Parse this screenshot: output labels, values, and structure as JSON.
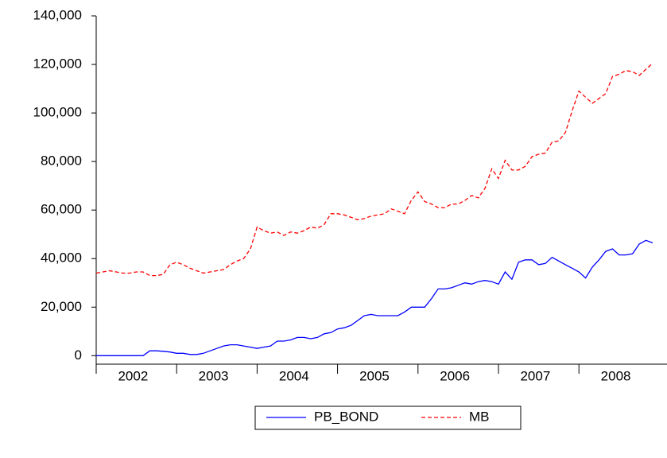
{
  "chart_data": {
    "type": "line",
    "categories": [
      null,
      null,
      null,
      null,
      null,
      null,
      "2002",
      null,
      null,
      null,
      null,
      null,
      null,
      null,
      null,
      null,
      null,
      null,
      "2003",
      null,
      null,
      null,
      null,
      null,
      null,
      null,
      null,
      null,
      null,
      null,
      "2004",
      null,
      null,
      null,
      null,
      null,
      null,
      null,
      null,
      null,
      null,
      null,
      "2005",
      null,
      null,
      null,
      null,
      null,
      null,
      null,
      null,
      null,
      null,
      null,
      "2006",
      null,
      null,
      null,
      null,
      null,
      null,
      null,
      null,
      null,
      null,
      null,
      "2007",
      null,
      null,
      null,
      null,
      null,
      null,
      null,
      null,
      null,
      null,
      null,
      "2008",
      null,
      null,
      null,
      null,
      null
    ],
    "series": [
      {
        "name": "PB_BOND",
        "color": "#0000ff",
        "dash": false,
        "values": [
          0,
          0,
          0,
          0,
          0,
          0,
          0,
          0,
          2000,
          2000,
          1800,
          1500,
          1000,
          1000,
          500,
          500,
          1000,
          2000,
          3000,
          4000,
          4500,
          4500,
          4000,
          3500,
          3000,
          3500,
          4000,
          6000,
          6000,
          6500,
          7500,
          7500,
          7000,
          7500,
          9000,
          9500,
          11000,
          11500,
          12500,
          14500,
          16500,
          17000,
          16500,
          16500,
          16500,
          16500,
          18000,
          20000,
          20000,
          20000,
          23500,
          27500,
          27500,
          28000,
          29000,
          30000,
          29500,
          30500,
          31000,
          30500,
          29500,
          34500,
          31500,
          38500,
          39500,
          39500,
          37500,
          38000,
          40500,
          39000,
          37500,
          36000,
          34500,
          32000,
          36500,
          39500,
          43000,
          44000,
          41500,
          41500,
          42000,
          46000,
          47500,
          46500
        ]
      },
      {
        "name": "MB",
        "color": "#ff0000",
        "dash": true,
        "values": [
          34000,
          34500,
          35000,
          34500,
          34000,
          34000,
          34500,
          34500,
          33000,
          33000,
          33500,
          37500,
          38500,
          37500,
          36000,
          35000,
          34000,
          34500,
          35000,
          35500,
          37500,
          39000,
          40000,
          44000,
          53000,
          51500,
          50500,
          51000,
          49500,
          51000,
          50500,
          51500,
          53000,
          52500,
          54000,
          58500,
          58500,
          58000,
          57000,
          56000,
          56500,
          57500,
          58000,
          58500,
          60500,
          59500,
          58500,
          64000,
          67500,
          63500,
          62500,
          61000,
          61000,
          62500,
          62500,
          64000,
          66000,
          65000,
          69000,
          77000,
          73000,
          80500,
          76500,
          76500,
          78000,
          82000,
          83000,
          83500,
          88000,
          88500,
          92000,
          101000,
          109000,
          106500,
          104000,
          106000,
          108000,
          115000,
          116000,
          117500,
          117000,
          115500,
          118000,
          120500
        ]
      }
    ],
    "ylim": [
      -3500,
      140000
    ],
    "yticks": [
      0,
      {
        "value": 20000,
        "label": "20,000"
      },
      {
        "value": 40000,
        "label": "40,000"
      },
      {
        "value": 60000,
        "label": "60,000"
      },
      {
        "value": 80000,
        "label": "80,000"
      },
      {
        "value": 100000,
        "label": "100,000"
      },
      {
        "value": 120000,
        "label": "120,000"
      },
      {
        "value": 140000,
        "label": "140,000"
      }
    ],
    "legend": "bottom"
  }
}
